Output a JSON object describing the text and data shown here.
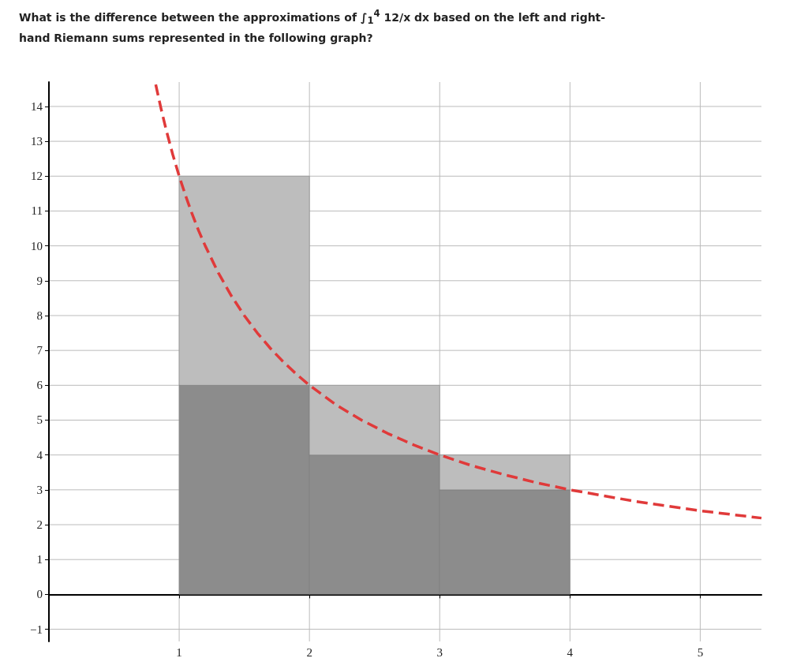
{
  "chart_data": {
    "type": "bar",
    "title": "What is the difference between the approximations of ∫$_{1}$$^{4}$ 12/x dx based on the left and right-hand Riemann sums represented in the following graph?",
    "x": [
      1.5,
      2.5,
      3.5
    ],
    "stacked": true,
    "series": [
      {
        "color": "#8c8c8c",
        "values": [
          6,
          4,
          3
        ]
      },
      {
        "color": "#bdbdbd",
        "values": [
          6,
          2,
          1
        ]
      },
      {
        "type": "line",
        "color": "#e03a3a",
        "line_style": "dashed",
        "marker": "none",
        "x": [
          0.82,
          0.86,
          0.9,
          0.95,
          1,
          1.05,
          1.1,
          1.15,
          1.2,
          1.3,
          1.4,
          1.5,
          1.6,
          1.7,
          1.8,
          1.9,
          2,
          2.2,
          2.4,
          2.6,
          2.8,
          3,
          3.25,
          3.5,
          3.75,
          4,
          4.5,
          5,
          5.47
        ],
        "values": [
          14.63,
          13.95,
          13.33,
          12.63,
          12,
          11.43,
          10.91,
          10.43,
          10,
          9.23,
          8.57,
          8,
          7.5,
          7.06,
          6.67,
          6.32,
          6,
          5.45,
          5,
          4.62,
          4.29,
          4,
          3.69,
          3.43,
          3.2,
          3,
          2.67,
          2.4,
          2.19
        ]
      }
    ],
    "xlim": [
      0,
      5.47
    ],
    "xticks": [
      1,
      2,
      3,
      4,
      5
    ],
    "ylim": [
      -1.35,
      14.7
    ],
    "yticks": [
      -1,
      0,
      1,
      2,
      3,
      4,
      5,
      6,
      7,
      8,
      9,
      10,
      11,
      12,
      13,
      14
    ],
    "grid": true
  }
}
